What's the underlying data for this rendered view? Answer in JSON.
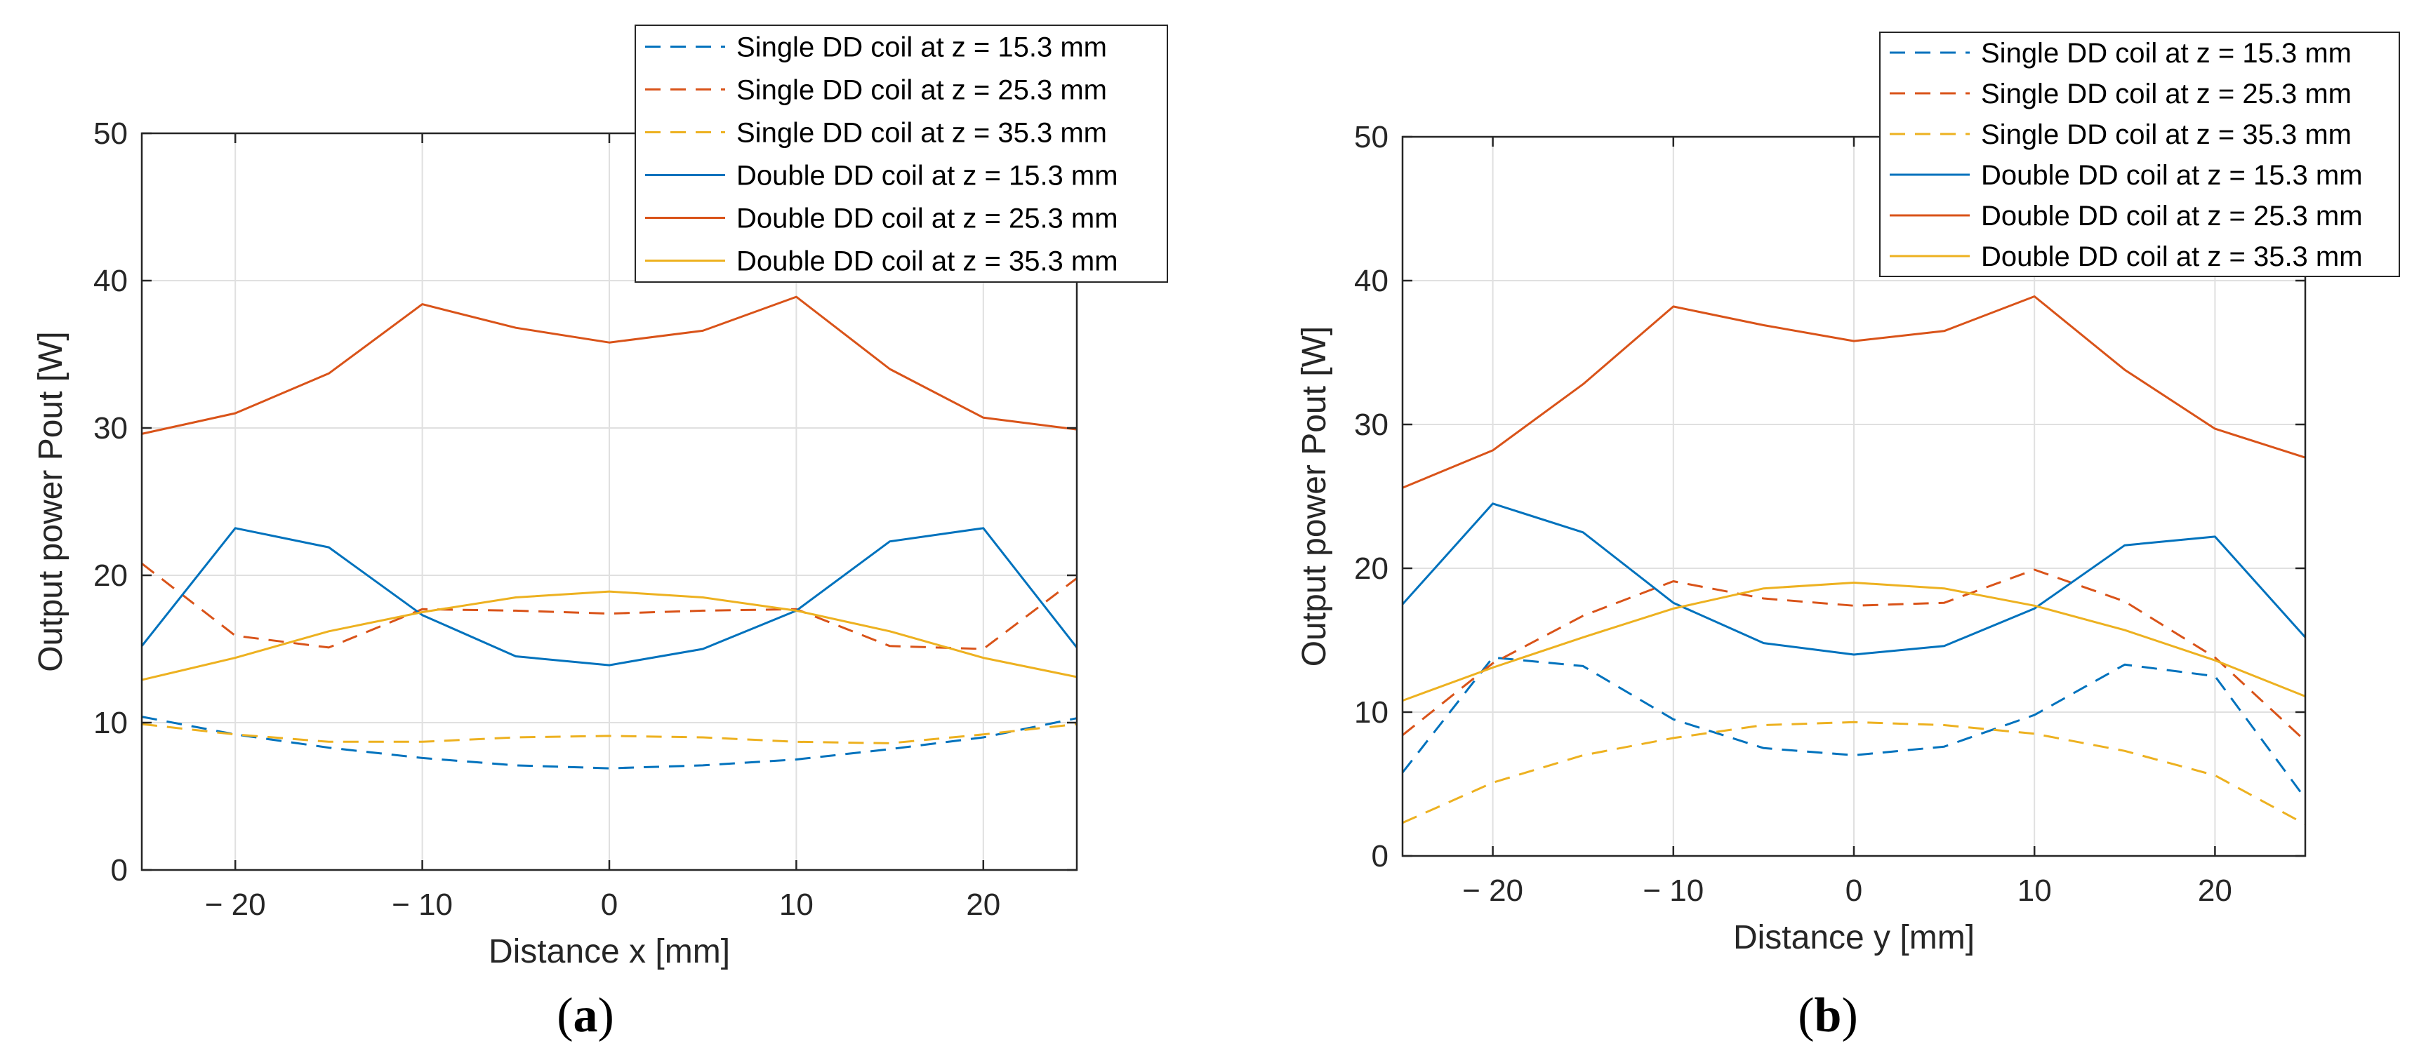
{
  "colors": {
    "blue": "#0072BD",
    "orange": "#D95319",
    "yellow": "#EDB120",
    "grid": "#E0E0E0",
    "axis": "#262626"
  },
  "chart_data": [
    {
      "type": "line",
      "panel_label": "a",
      "xlabel": "Distance x [mm]",
      "ylabel": "Output power Pout [W]",
      "xlim": [
        -25,
        25
      ],
      "ylim": [
        0,
        50
      ],
      "xticks": [
        -20,
        -10,
        0,
        10,
        20
      ],
      "xtick_labels": [
        "− 20",
        "− 10",
        "0",
        "10",
        "20"
      ],
      "yticks": [
        0,
        10,
        20,
        30,
        40,
        50
      ],
      "ytick_labels": [
        "0",
        "10",
        "20",
        "30",
        "40",
        "50"
      ],
      "grid": true,
      "legend_position": "top-right",
      "x": [
        -25,
        -20,
        -15,
        -10,
        -5,
        0,
        5,
        10,
        15,
        20,
        25
      ],
      "series": [
        {
          "name": "Single DD coil at z = 15.3 mm",
          "color": "blue",
          "style": "dashed",
          "values": [
            10.4,
            9.2,
            8.3,
            7.6,
            7.1,
            6.9,
            7.1,
            7.5,
            8.2,
            9.0,
            10.3
          ]
        },
        {
          "name": "Single DD coil at z = 25.3 mm",
          "color": "orange",
          "style": "dashed",
          "values": [
            20.8,
            15.9,
            15.1,
            17.7,
            17.6,
            17.4,
            17.6,
            17.7,
            15.2,
            15.0,
            19.8
          ]
        },
        {
          "name": "Single DD coil at z = 35.3 mm",
          "color": "yellow",
          "style": "dashed",
          "values": [
            9.9,
            9.2,
            8.7,
            8.7,
            9.0,
            9.1,
            9.0,
            8.7,
            8.6,
            9.2,
            9.9
          ]
        },
        {
          "name": "Double DD coil at z = 15.3 mm",
          "color": "blue",
          "style": "solid",
          "values": [
            15.2,
            23.2,
            21.9,
            17.3,
            14.5,
            13.9,
            15.0,
            17.6,
            22.3,
            23.2,
            15.1
          ]
        },
        {
          "name": "Double DD coil at z = 25.3 mm",
          "color": "orange",
          "style": "solid",
          "values": [
            29.6,
            31.0,
            33.7,
            38.4,
            36.8,
            35.8,
            36.6,
            38.9,
            34.0,
            30.7,
            29.9
          ]
        },
        {
          "name": "Double DD coil at z = 35.3 mm",
          "color": "yellow",
          "style": "solid",
          "values": [
            12.9,
            14.4,
            16.2,
            17.5,
            18.5,
            18.9,
            18.5,
            17.6,
            16.2,
            14.4,
            13.1
          ]
        }
      ]
    },
    {
      "type": "line",
      "panel_label": "b",
      "xlabel": "Distance y [mm]",
      "ylabel": "Output power Pout [W]",
      "xlim": [
        -25,
        25
      ],
      "ylim": [
        0,
        50
      ],
      "xticks": [
        -20,
        -10,
        0,
        10,
        20
      ],
      "xtick_labels": [
        "− 20",
        "− 10",
        "0",
        "10",
        "20"
      ],
      "yticks": [
        0,
        10,
        20,
        30,
        40,
        50
      ],
      "ytick_labels": [
        "0",
        "10",
        "20",
        "30",
        "40",
        "50"
      ],
      "grid": true,
      "legend_position": "top-right",
      "x": [
        -25,
        -20,
        -15,
        -10,
        -5,
        0,
        5,
        10,
        15,
        20,
        25
      ],
      "series": [
        {
          "name": "Single DD coil at z = 15.3 mm",
          "color": "blue",
          "style": "dashed",
          "values": [
            5.8,
            13.8,
            13.2,
            9.5,
            7.5,
            7.0,
            7.6,
            9.8,
            13.3,
            12.5,
            4.0
          ]
        },
        {
          "name": "Single DD coil at z = 25.3 mm",
          "color": "orange",
          "style": "dashed",
          "values": [
            8.4,
            13.4,
            16.7,
            19.1,
            17.9,
            17.4,
            17.6,
            19.9,
            17.7,
            13.8,
            8.0
          ]
        },
        {
          "name": "Single DD coil at z = 35.3 mm",
          "color": "yellow",
          "style": "dashed",
          "values": [
            2.3,
            5.1,
            7.0,
            8.2,
            9.1,
            9.3,
            9.1,
            8.5,
            7.3,
            5.6,
            2.2
          ]
        },
        {
          "name": "Double DD coil at z = 15.3 mm",
          "color": "blue",
          "style": "solid",
          "values": [
            17.5,
            24.5,
            22.5,
            17.6,
            14.8,
            14.0,
            14.6,
            17.2,
            21.6,
            22.2,
            15.2
          ]
        },
        {
          "name": "Double DD coil at z = 25.3 mm",
          "color": "orange",
          "style": "solid",
          "values": [
            25.6,
            28.2,
            32.8,
            38.2,
            36.9,
            35.8,
            36.5,
            38.9,
            33.8,
            29.7,
            27.7
          ]
        },
        {
          "name": "Double DD coil at z = 35.3 mm",
          "color": "yellow",
          "style": "solid",
          "values": [
            10.8,
            13.1,
            15.2,
            17.2,
            18.6,
            19.0,
            18.6,
            17.4,
            15.7,
            13.6,
            11.1
          ]
        }
      ]
    }
  ]
}
